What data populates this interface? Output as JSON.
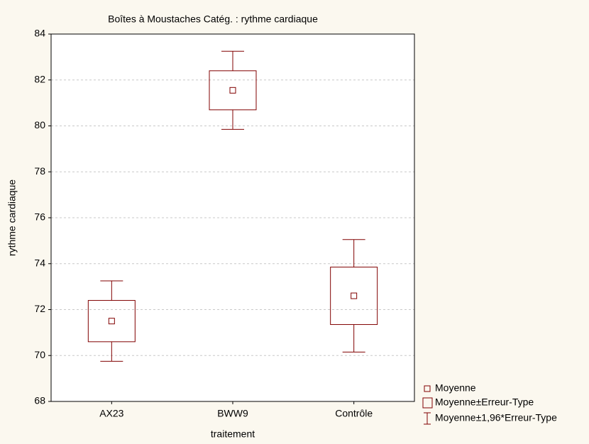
{
  "chart_data": {
    "type": "box",
    "title": "Boîtes à Moustaches Catég. : rythme cardiaque",
    "xlabel": "traitement",
    "ylabel": "rythme cardiaque",
    "categories": [
      "AX23",
      "BWW9",
      "Contrôle"
    ],
    "mean": [
      71.5,
      81.55,
      72.6
    ],
    "box_low": [
      70.6,
      80.7,
      71.35
    ],
    "box_high": [
      72.4,
      82.4,
      73.85
    ],
    "whisker_low": [
      69.75,
      79.85,
      70.15
    ],
    "whisker_high": [
      73.25,
      83.25,
      75.05
    ],
    "legend": [
      "Moyenne",
      "Moyenne±Erreur-Type",
      "Moyenne±1,96*Erreur-Type"
    ],
    "color": "#800000",
    "ylim": [
      68,
      84
    ],
    "yticks": [
      68,
      70,
      72,
      74,
      76,
      78,
      80,
      82,
      84
    ],
    "grid": true
  }
}
